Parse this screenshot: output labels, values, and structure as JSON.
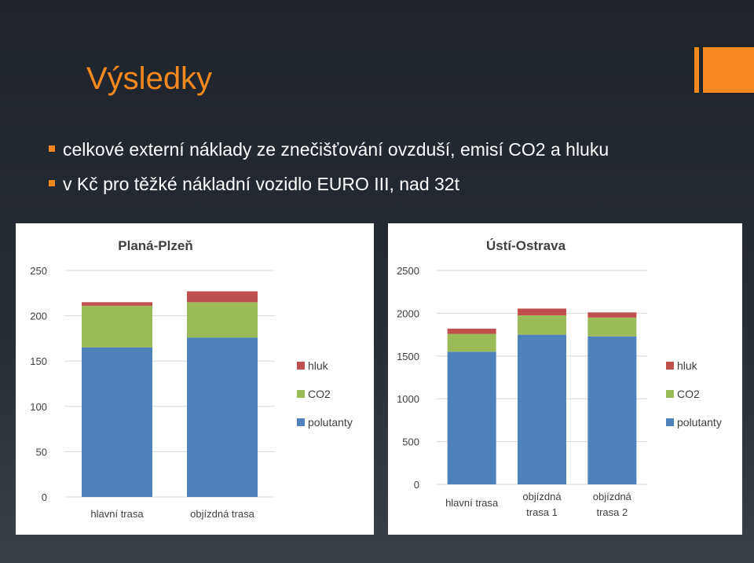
{
  "slide": {
    "title": "Výsledky",
    "bullets": [
      "celkové externí náklady ze znečišťování ovzduší, emisí CO2 a hluku",
      "v Kč pro těžké nákladní vozidlo EURO III, nad 32t"
    ],
    "colors": {
      "accent": "#f5891f",
      "text": "#ffffff",
      "background": "#262c34"
    }
  },
  "chart_data": [
    {
      "type": "bar",
      "stacked": true,
      "title": "Planá-Plzeň",
      "categories": [
        "hlavní trasa",
        "objízdná trasa"
      ],
      "series": [
        {
          "name": "polutanty",
          "color": "#4f81bd",
          "values": [
            165,
            176
          ]
        },
        {
          "name": "CO2",
          "color": "#9bbb59",
          "values": [
            46,
            39
          ]
        },
        {
          "name": "hluk",
          "color": "#c0504d",
          "values": [
            4,
            12
          ]
        }
      ],
      "ylim": [
        0,
        250
      ],
      "yticks": [
        0,
        50,
        100,
        150,
        200,
        250
      ],
      "grid": true,
      "legend": "right"
    },
    {
      "type": "bar",
      "stacked": true,
      "title": "Ústí-Ostrava",
      "categories": [
        "hlavní trasa",
        "objízdná trasa 1",
        "objízdná trasa 2"
      ],
      "series": [
        {
          "name": "polutanty",
          "color": "#4f81bd",
          "values": [
            1550,
            1750,
            1730
          ]
        },
        {
          "name": "CO2",
          "color": "#9bbb59",
          "values": [
            210,
            225,
            220
          ]
        },
        {
          "name": "hluk",
          "color": "#c0504d",
          "values": [
            60,
            80,
            60
          ]
        }
      ],
      "ylim": [
        0,
        2500
      ],
      "yticks": [
        0,
        500,
        1000,
        1500,
        2000,
        2500
      ],
      "grid": true,
      "legend": "right"
    }
  ]
}
